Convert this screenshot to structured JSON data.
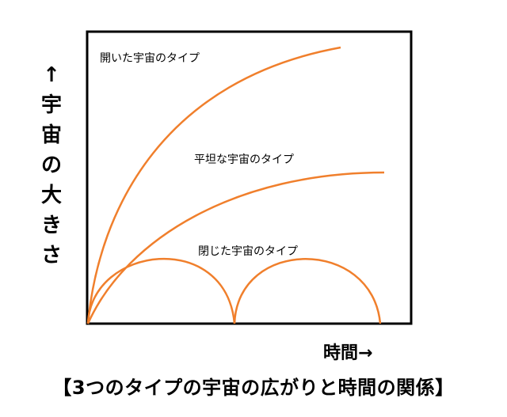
{
  "diagram": {
    "y_axis_label": [
      "↑",
      "宇",
      "宙",
      "の",
      "大",
      "き",
      "さ"
    ],
    "x_axis_label": "時間→",
    "caption": "【3つのタイプの宇宙の広がりと時間の関係】",
    "curve_color": "#f07f2c",
    "curves": [
      {
        "id": "open",
        "label": "開いた宇宙のタイプ"
      },
      {
        "id": "flat",
        "label": "平坦な宇宙のタイプ"
      },
      {
        "id": "closed",
        "label": "閉じた宇宙のタイプ"
      }
    ]
  }
}
